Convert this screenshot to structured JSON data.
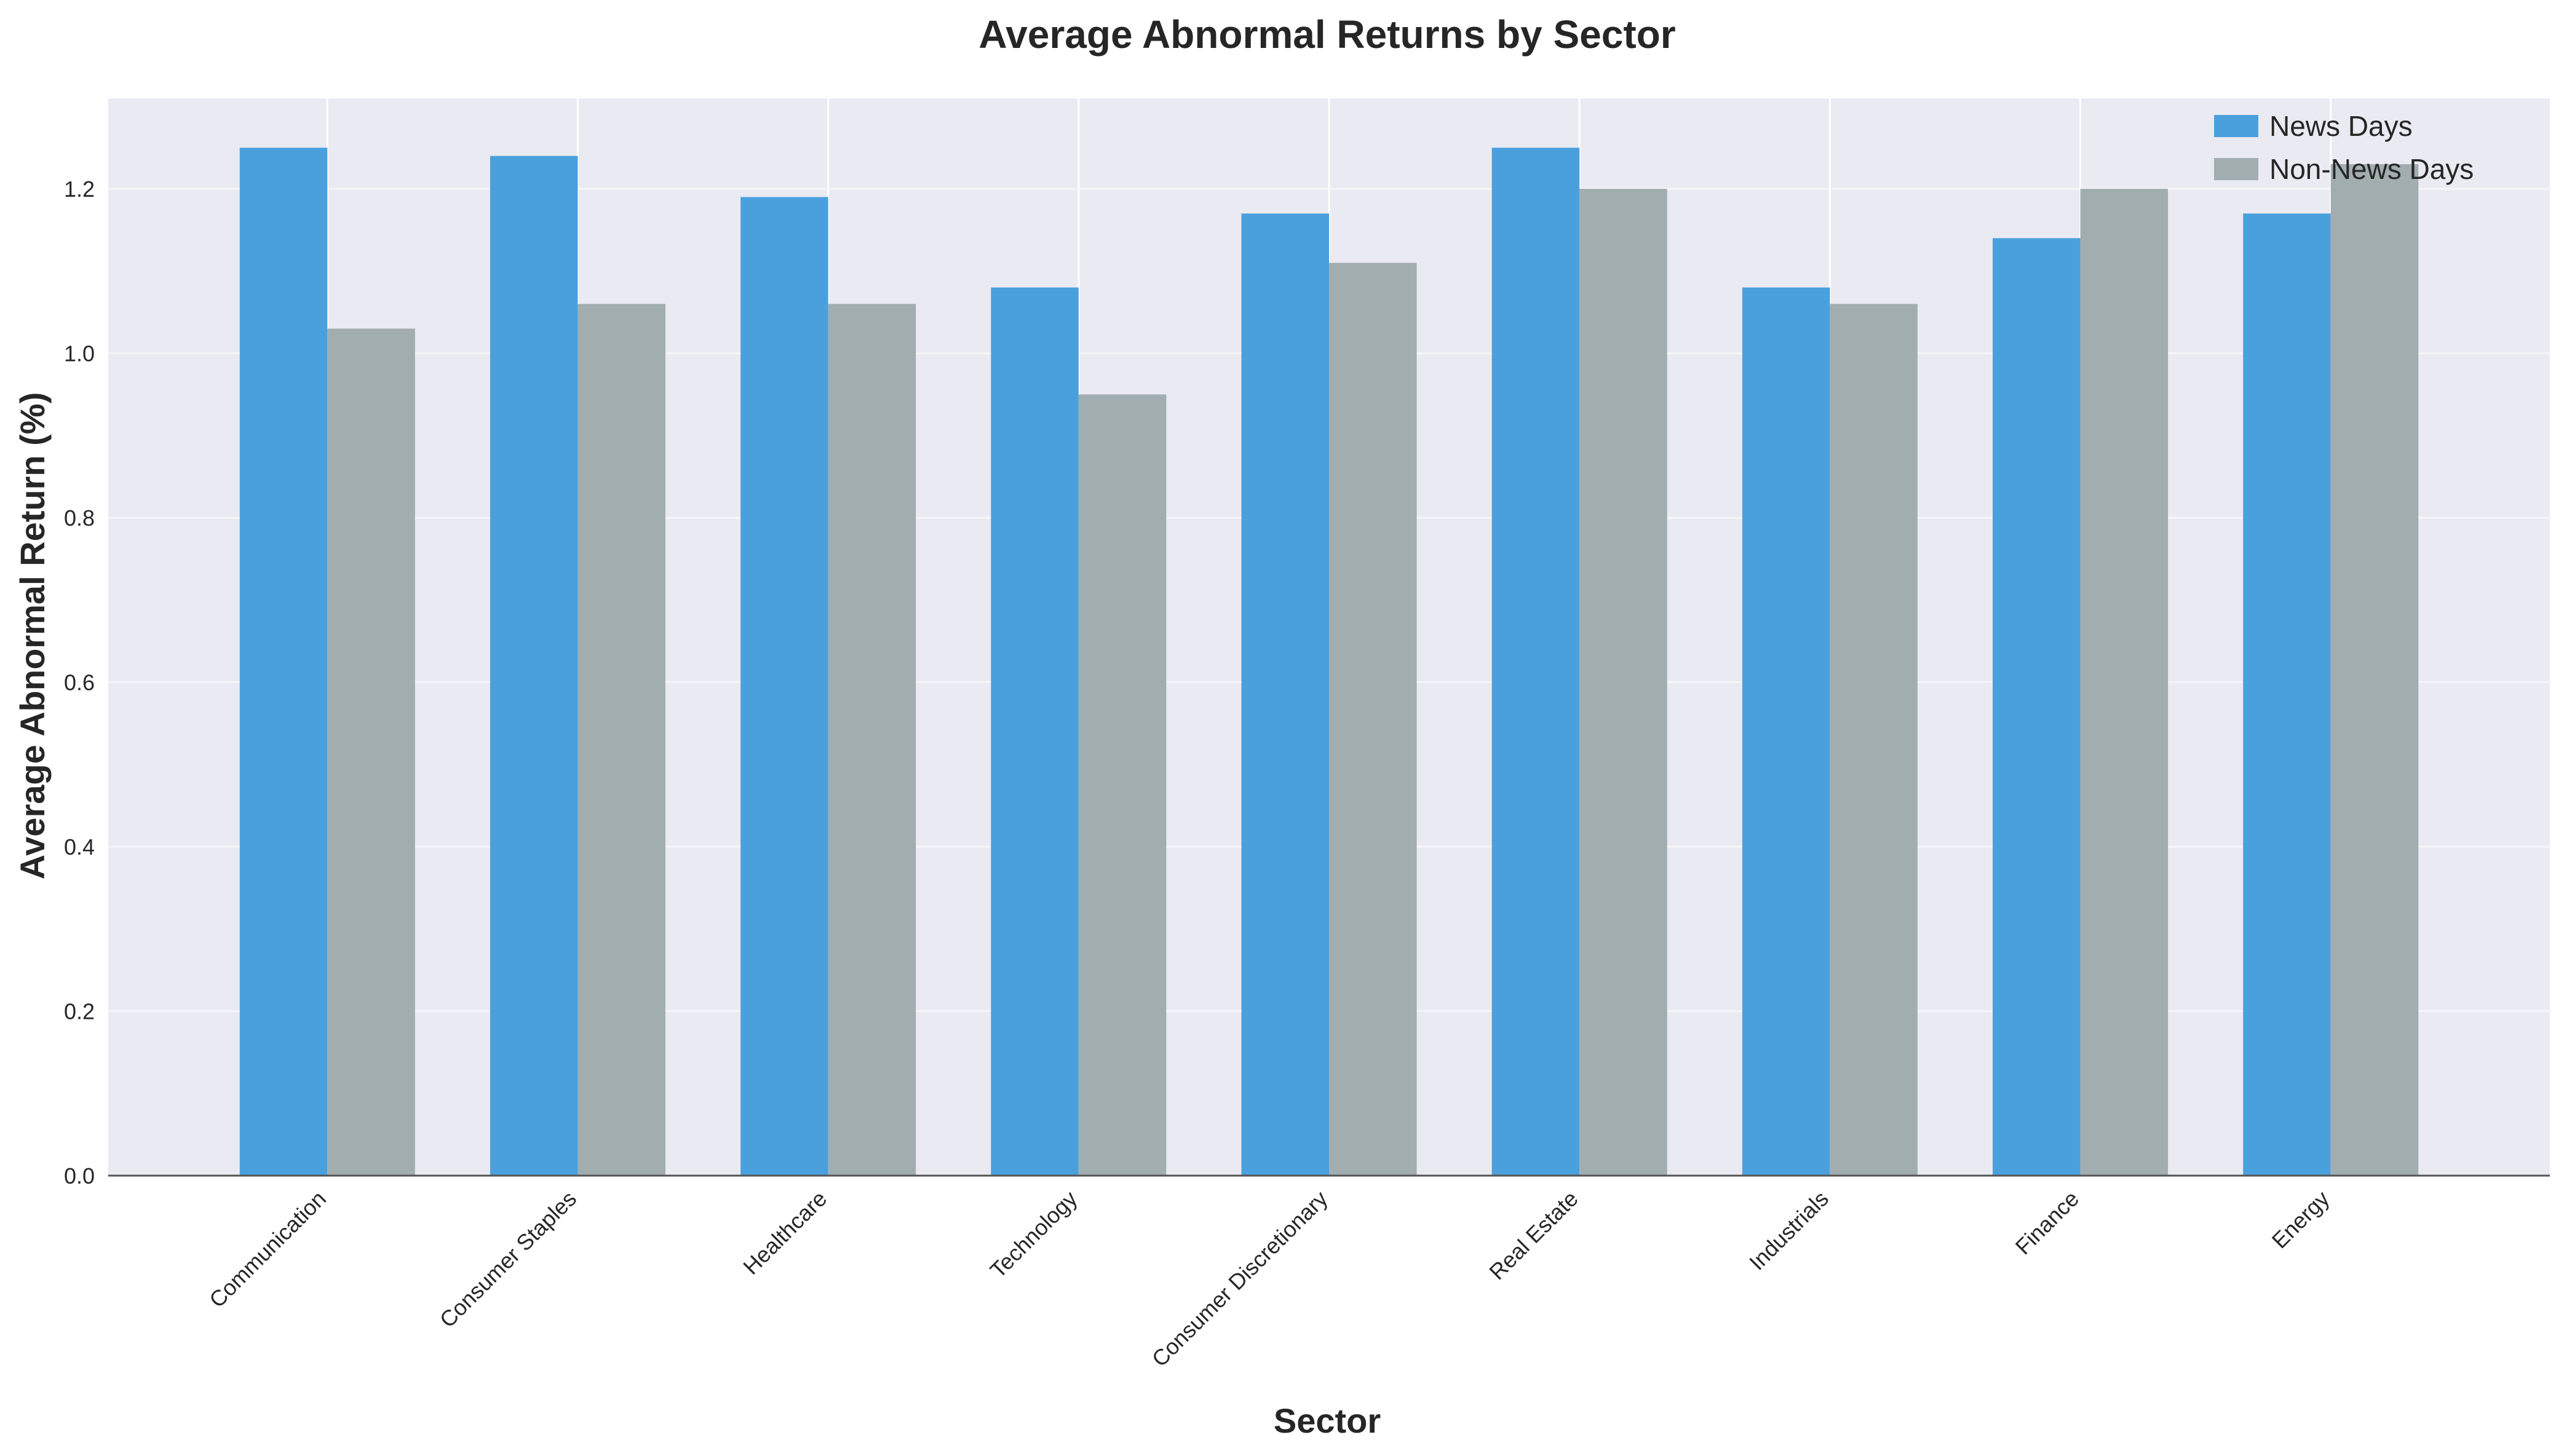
{
  "chart_data": {
    "type": "bar",
    "title": "Average Abnormal Returns by Sector",
    "xlabel": "Sector",
    "ylabel": "Average Abnormal Return (%)",
    "categories": [
      "Communication",
      "Consumer Staples",
      "Healthcare",
      "Technology",
      "Consumer Discretionary",
      "Real Estate",
      "Industrials",
      "Finance",
      "Energy"
    ],
    "series": [
      {
        "name": "News Days",
        "color": "#4aa0dd",
        "values": [
          1.25,
          1.24,
          1.19,
          1.08,
          1.17,
          1.25,
          1.08,
          1.14,
          1.17
        ]
      },
      {
        "name": "Non-News Days",
        "color": "#a2adb0",
        "values": [
          1.03,
          1.06,
          1.06,
          0.95,
          1.11,
          1.2,
          1.06,
          1.2,
          1.23
        ]
      }
    ],
    "ylim": [
      0,
      1.31
    ],
    "yticks": [
      0.0,
      0.2,
      0.4,
      0.6,
      0.8,
      1.0,
      1.2
    ],
    "ytick_labels": [
      "0.0",
      "0.2",
      "0.4",
      "0.6",
      "0.8",
      "1.0",
      "1.2"
    ],
    "grid": true,
    "legend_position": "top-right",
    "background_color": "#eaeaf2"
  }
}
